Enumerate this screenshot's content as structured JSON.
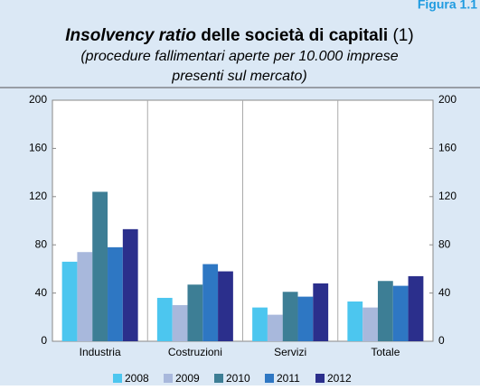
{
  "chart_data": {
    "type": "bar",
    "figure_label": "Figura 1.1",
    "title": [
      "Insolvency ratio",
      "delle società di capitali",
      "(1)"
    ],
    "subtitle": [
      "(procedure fallimentari aperte per 10.000 imprese",
      "presenti sul mercato)"
    ],
    "categories": [
      "Industria",
      "Costruzioni",
      "Servizi",
      "Totale"
    ],
    "series": [
      {
        "name": "2008",
        "color": "#4cc6ef",
        "values": [
          66,
          36,
          28,
          33
        ]
      },
      {
        "name": "2009",
        "color": "#a8b8dc",
        "values": [
          74,
          30,
          22,
          28
        ]
      },
      {
        "name": "2010",
        "color": "#3d7e95",
        "values": [
          124,
          47,
          41,
          50
        ]
      },
      {
        "name": "2011",
        "color": "#2e77c3",
        "values": [
          78,
          64,
          37,
          46
        ]
      },
      {
        "name": "2012",
        "color": "#2b2f8c",
        "values": [
          93,
          58,
          48,
          54
        ]
      }
    ],
    "ylim": [
      0,
      200
    ],
    "yticks": [
      0,
      40,
      80,
      120,
      160,
      200
    ]
  }
}
